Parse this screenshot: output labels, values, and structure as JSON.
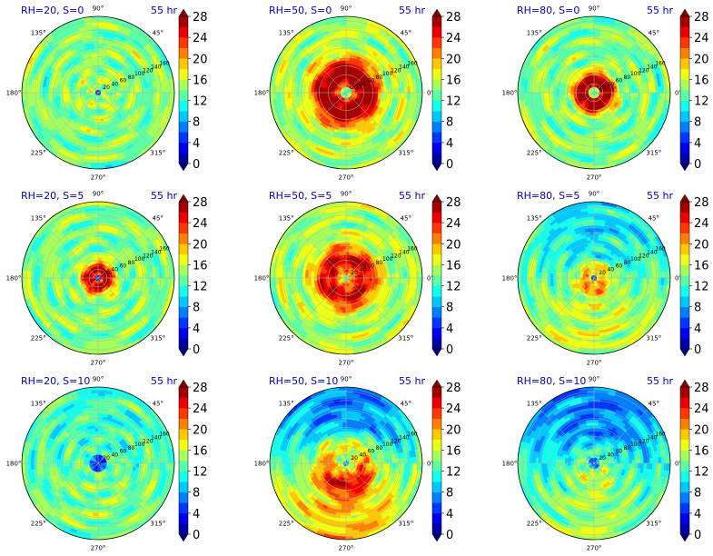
{
  "chart_data": {
    "type": "heatmap",
    "projection": "polar",
    "layout": {
      "rows": 3,
      "cols": 3
    },
    "colorbar": {
      "ticks": [
        "0",
        "4",
        "8",
        "12",
        "16",
        "20",
        "24",
        "28"
      ],
      "range": [
        0,
        28
      ],
      "levels": 14,
      "colormap": "jet",
      "extend": "both"
    },
    "angle_ticks": [
      "0°",
      "45°",
      "90°",
      "135°",
      "180°",
      "225°",
      "270°",
      "315°"
    ],
    "radial_ticks": [
      "20",
      "40",
      "60",
      "80",
      "100",
      "120",
      "140",
      "160"
    ],
    "grid": true,
    "panels": [
      {
        "label": "RH=20, S=0",
        "time": "55 hr",
        "rh": 20,
        "s": 0,
        "core_value": 2,
        "core_radius": 8,
        "ring_value": 15,
        "ring_radius": 32,
        "ring_width": 28,
        "env_value": 14,
        "north_bias": 0
      },
      {
        "label": "RH=50, S=0",
        "time": "55 hr",
        "rh": 50,
        "s": 0,
        "core_value": 12,
        "core_radius": 10,
        "ring_value": 29,
        "ring_radius": 44,
        "ring_width": 34,
        "env_value": 15,
        "north_bias": 0
      },
      {
        "label": "RH=80, S=0",
        "time": "55 hr",
        "rh": 80,
        "s": 0,
        "core_value": 12,
        "core_radius": 10,
        "ring_value": 29,
        "ring_radius": 26,
        "ring_width": 22,
        "env_value": 14,
        "north_bias": 0
      },
      {
        "label": "RH=20, S=5",
        "time": "55 hr",
        "rh": 20,
        "s": 5,
        "core_value": 2,
        "core_radius": 8,
        "ring_value": 27,
        "ring_radius": 20,
        "ring_width": 18,
        "env_value": 14,
        "north_bias": 0
      },
      {
        "label": "RH=50, S=5",
        "time": "55 hr",
        "rh": 50,
        "s": 5,
        "core_value": 12,
        "core_radius": 8,
        "ring_value": 26,
        "ring_radius": 42,
        "ring_width": 32,
        "env_value": 15,
        "north_bias": 0
      },
      {
        "label": "RH=80, S=5",
        "time": "55 hr",
        "rh": 80,
        "s": 5,
        "core_value": 3,
        "core_radius": 7,
        "ring_value": 20,
        "ring_radius": 22,
        "ring_width": 20,
        "env_value": 13,
        "north_bias": -3
      },
      {
        "label": "RH=20, S=10",
        "time": "55 hr",
        "rh": 20,
        "s": 10,
        "core_value": 4,
        "core_radius": 20,
        "ring_value": 13,
        "ring_radius": 40,
        "ring_width": 30,
        "env_value": 13,
        "north_bias": -1
      },
      {
        "label": "RH=50, S=10",
        "time": "55 hr",
        "rh": 50,
        "s": 10,
        "core_value": 7,
        "core_radius": 8,
        "ring_value": 21,
        "ring_radius": 45,
        "ring_width": 30,
        "env_value": 13,
        "north_bias": -6
      },
      {
        "label": "RH=80, S=10",
        "time": "55 hr",
        "rh": 80,
        "s": 10,
        "core_value": 5,
        "core_radius": 10,
        "ring_value": 14,
        "ring_radius": 30,
        "ring_width": 24,
        "env_value": 11,
        "north_bias": -4
      }
    ]
  }
}
